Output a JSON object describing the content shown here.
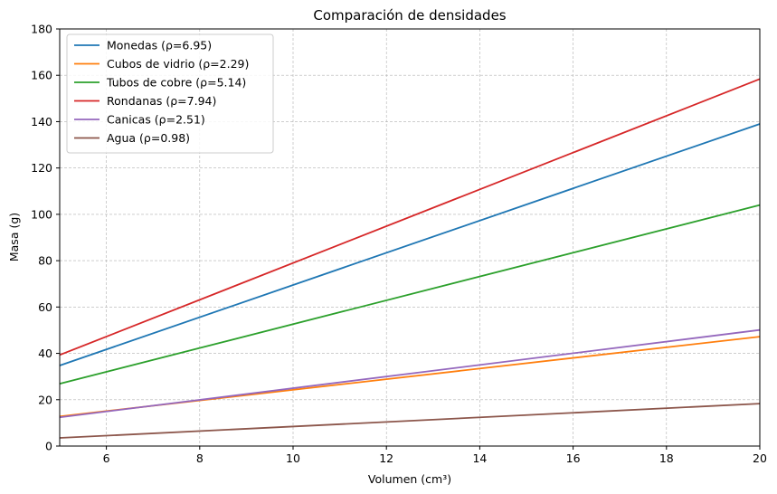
{
  "chart_data": {
    "type": "line",
    "title": "Comparación de densidades",
    "xlabel": "Volumen (cm³)",
    "ylabel": "Masa (g)",
    "xlim": [
      5,
      20
    ],
    "ylim": [
      0,
      180
    ],
    "xticks": [
      6,
      8,
      10,
      12,
      14,
      16,
      18,
      20
    ],
    "yticks": [
      0,
      20,
      40,
      60,
      80,
      100,
      120,
      140,
      160,
      180
    ],
    "grid": true,
    "legend_position": "top-left",
    "series": [
      {
        "name": "Monedas (ρ=6.95)",
        "color": "#1f77b4",
        "x": [
          5,
          20
        ],
        "y": [
          34.75,
          139.0
        ]
      },
      {
        "name": "Cubos de vidrio (ρ=2.29)",
        "color": "#ff7f0e",
        "x": [
          5,
          20
        ],
        "y": [
          12.8,
          47.2
        ]
      },
      {
        "name": "Tubos de cobre (ρ=5.14)",
        "color": "#2ca02c",
        "x": [
          5,
          20
        ],
        "y": [
          26.9,
          104.0
        ]
      },
      {
        "name": "Rondanas (ρ=7.94)",
        "color": "#d62728",
        "x": [
          5,
          20
        ],
        "y": [
          39.3,
          158.4
        ]
      },
      {
        "name": "Canicas (ρ=2.51)",
        "color": "#9467bd",
        "x": [
          5,
          20
        ],
        "y": [
          12.4,
          50.1
        ]
      },
      {
        "name": "Agua (ρ=0.98)",
        "color": "#8c564b",
        "x": [
          5,
          20
        ],
        "y": [
          3.5,
          18.3
        ]
      }
    ]
  }
}
